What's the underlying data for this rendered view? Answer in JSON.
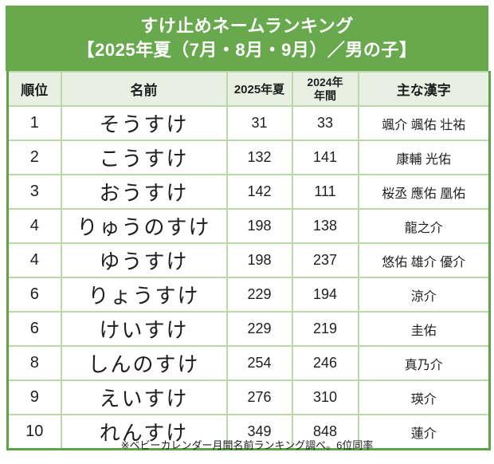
{
  "title": {
    "line1": "すけ止めネームランキング",
    "line2": "【2025年夏（7月・8月・9月）／男の子】"
  },
  "colors": {
    "banner_bg": "#68a94e",
    "table_border": "#5fa348",
    "grid_line": "#bcd8aa",
    "header_bg": "#e9efe2",
    "title_text": "#ffffff",
    "text_dark": "#1e1e1e"
  },
  "table": {
    "col_rank": "順位",
    "col_name": "名前",
    "col_2025": "2025年夏",
    "col_2024_line1": "2024年",
    "col_2024_line2": "年間",
    "col_kanji": "主な漢字",
    "rows": [
      {
        "rank": "1",
        "name": "そうすけ",
        "summer2025": "31",
        "annual2024": "33",
        "kanji": "颯介 颯佑 壮祐"
      },
      {
        "rank": "2",
        "name": "こうすけ",
        "summer2025": "132",
        "annual2024": "141",
        "kanji": "康輔 光佑"
      },
      {
        "rank": "3",
        "name": "おうすけ",
        "summer2025": "142",
        "annual2024": "111",
        "kanji": "桜丞 應佑 凰佑"
      },
      {
        "rank": "4",
        "name": "りゅうのすけ",
        "summer2025": "198",
        "annual2024": "138",
        "kanji": "龍之介"
      },
      {
        "rank": "4",
        "name": "ゆうすけ",
        "summer2025": "198",
        "annual2024": "237",
        "kanji": "悠佑 雄介 優介"
      },
      {
        "rank": "6",
        "name": "りょうすけ",
        "summer2025": "229",
        "annual2024": "194",
        "kanji": "涼介"
      },
      {
        "rank": "6",
        "name": "けいすけ",
        "summer2025": "229",
        "annual2024": "219",
        "kanji": "圭佑"
      },
      {
        "rank": "8",
        "name": "しんのすけ",
        "summer2025": "254",
        "annual2024": "246",
        "kanji": "真乃介"
      },
      {
        "rank": "9",
        "name": "えいすけ",
        "summer2025": "276",
        "annual2024": "310",
        "kanji": "瑛介"
      },
      {
        "rank": "10",
        "name": "れんすけ",
        "summer2025": "349",
        "annual2024": "848",
        "kanji": "蓮介"
      }
    ]
  },
  "footnote": "※ベビーカレンダー月間名前ランキング調べ。6位同率",
  "chart_data": {
    "type": "table",
    "title": "すけ止めネームランキング【2025年夏（7月・8月・9月）／男の子】",
    "columns": [
      "順位",
      "名前",
      "2025年夏",
      "2024年年間",
      "主な漢字"
    ],
    "rows": [
      [
        "1",
        "そうすけ",
        31,
        33,
        "颯介 颯佑 壮祐"
      ],
      [
        "2",
        "こうすけ",
        132,
        141,
        "康輔 光佑"
      ],
      [
        "3",
        "おうすけ",
        142,
        111,
        "桜丞 應佑 凰佑"
      ],
      [
        "4",
        "りゅうのすけ",
        198,
        138,
        "龍之介"
      ],
      [
        "4",
        "ゆうすけ",
        198,
        237,
        "悠佑 雄介 優介"
      ],
      [
        "6",
        "りょうすけ",
        229,
        194,
        "涼介"
      ],
      [
        "6",
        "けいすけ",
        229,
        219,
        "圭佑"
      ],
      [
        "8",
        "しんのすけ",
        254,
        246,
        "真乃介"
      ],
      [
        "9",
        "えいすけ",
        276,
        310,
        "瑛介"
      ],
      [
        "10",
        "れんすけ",
        349,
        848,
        "蓮介"
      ]
    ],
    "note": "※ベビーカレンダー月間名前ランキング調べ。6位同率",
    "layout": {
      "grid": "on",
      "header_fill": "#e9efe2",
      "banner_fill": "#68a94e"
    }
  }
}
